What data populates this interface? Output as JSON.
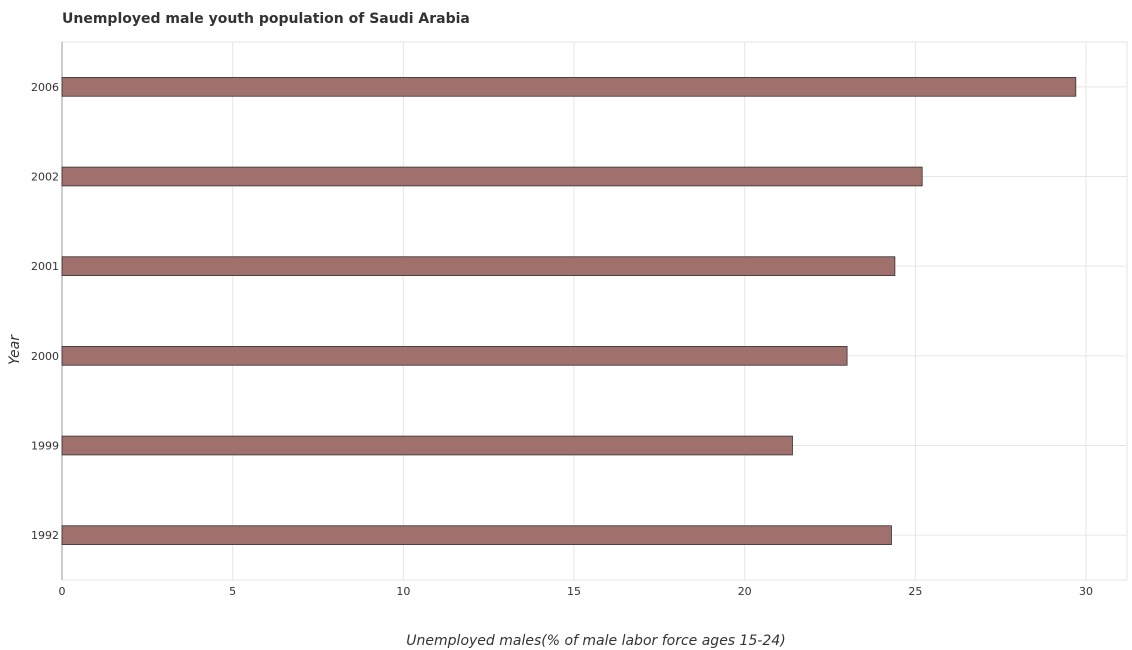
{
  "chart_data": {
    "type": "bar",
    "orientation": "horizontal",
    "title": "Unemployed male youth population of Saudi Arabia",
    "xlabel": "Unemployed males(% of male labor force ages 15-24)",
    "ylabel": "Year",
    "categories": [
      "1992",
      "1999",
      "2000",
      "2001",
      "2002",
      "2006"
    ],
    "values": [
      24.3,
      21.4,
      23.0,
      24.4,
      25.2,
      29.7
    ],
    "xlim": [
      0,
      31.2
    ],
    "xticks": [
      "0",
      "5",
      "10",
      "15",
      "20",
      "25",
      "30"
    ],
    "grid": true,
    "bar_color": "#a0706c",
    "bar_edge_color": "#333333"
  }
}
